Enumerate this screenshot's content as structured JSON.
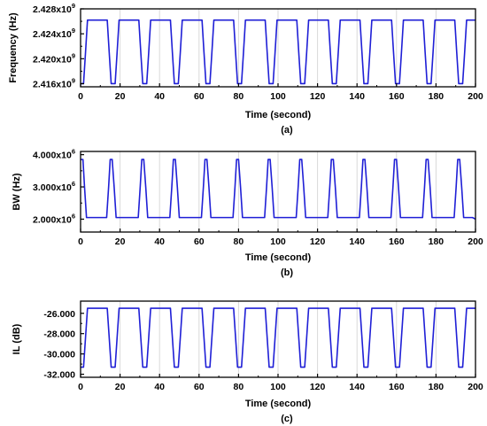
{
  "chart_data": [
    {
      "type": "line",
      "caption": "(a)",
      "xlabel": "Time (second)",
      "ylabel": "Frequency (Hz)",
      "xlim": [
        0,
        200
      ],
      "ylim": [
        2.4155,
        2.428
      ],
      "xticks": [
        0,
        20,
        40,
        60,
        80,
        100,
        120,
        140,
        160,
        180,
        200
      ],
      "xtick_labels": [
        "0",
        "20",
        "40",
        "60",
        "80",
        "100",
        "120",
        "140",
        "160",
        "180",
        "200"
      ],
      "yticks": [
        2.416,
        2.42,
        2.424,
        2.428
      ],
      "ytick_labels": [
        "2.416x10",
        "2.420x10",
        "2.424x10",
        "2.428x10"
      ],
      "ytick_exponent": "9",
      "grid": "vertical",
      "line_color": "#1f1fd6",
      "series": [
        {
          "x": [
            0,
            1.5,
            2.5,
            3.5,
            13.5,
            14.5,
            15.5,
            17.5,
            18.5,
            19.5,
            29.5,
            30.5,
            31.5,
            33.5,
            34.5,
            35.5,
            45.5,
            46.5,
            47.5,
            49.5,
            50.5,
            51.5,
            61.5,
            62.5,
            63.5,
            65.5,
            66.5,
            67.5,
            77.5,
            78.5,
            79.5,
            81.5,
            82.5,
            83.5,
            93.5,
            94.5,
            95.5,
            97.5,
            98.5,
            99.5,
            109.5,
            110.5,
            111.5,
            113.5,
            114.5,
            115.5,
            125.5,
            126.5,
            127.5,
            129.5,
            130.5,
            131.5,
            141.5,
            142.5,
            143.5,
            145.5,
            146.5,
            147.5,
            157.5,
            158.5,
            159.5,
            161.5,
            162.5,
            163.5,
            173.5,
            174.5,
            175.5,
            177.5,
            178.5,
            179.5,
            189.5,
            190.5,
            191.5,
            193.5,
            194.5,
            195.5,
            200
          ],
          "y": [
            2.416,
            2.416,
            2.421,
            2.4262,
            2.4262,
            2.421,
            2.416,
            2.416,
            2.421,
            2.4262,
            2.4262,
            2.421,
            2.416,
            2.416,
            2.421,
            2.4262,
            2.4262,
            2.421,
            2.416,
            2.416,
            2.421,
            2.4262,
            2.4262,
            2.421,
            2.416,
            2.416,
            2.421,
            2.4262,
            2.4262,
            2.421,
            2.416,
            2.416,
            2.421,
            2.4262,
            2.4262,
            2.421,
            2.416,
            2.416,
            2.421,
            2.4262,
            2.4262,
            2.421,
            2.416,
            2.416,
            2.421,
            2.4262,
            2.4262,
            2.421,
            2.416,
            2.416,
            2.421,
            2.4262,
            2.4262,
            2.421,
            2.416,
            2.416,
            2.421,
            2.4262,
            2.4262,
            2.421,
            2.416,
            2.416,
            2.421,
            2.4262,
            2.4262,
            2.421,
            2.416,
            2.416,
            2.421,
            2.4262,
            2.4262,
            2.421,
            2.416,
            2.416,
            2.421,
            2.4262,
            2.4262
          ]
        }
      ]
    },
    {
      "type": "line",
      "caption": "(b)",
      "xlabel": "Time (second)",
      "ylabel": "BW (Hz)",
      "xlim": [
        0,
        200
      ],
      "ylim": [
        1.6,
        4.1
      ],
      "xticks": [
        0,
        20,
        40,
        60,
        80,
        100,
        120,
        140,
        160,
        180,
        200
      ],
      "xtick_labels": [
        "0",
        "20",
        "40",
        "60",
        "80",
        "100",
        "120",
        "140",
        "160",
        "180",
        "200"
      ],
      "yticks": [
        2.0,
        3.0,
        4.0
      ],
      "ytick_labels": [
        "2.000x10",
        "3.000x10",
        "4.000x10"
      ],
      "ytick_exponent": "6",
      "grid": "vertical",
      "line_color": "#1f1fd6",
      "series": [
        {
          "x": [
            0,
            1.2,
            2.0,
            3.0,
            13.2,
            14.2,
            15.0,
            16.0,
            17.0,
            18.0,
            29.2,
            30.2,
            31.0,
            32.0,
            33.0,
            34.0,
            45.2,
            46.2,
            47.0,
            48.0,
            49.0,
            50.0,
            61.2,
            62.2,
            63.0,
            64.0,
            65.0,
            66.0,
            77.2,
            78.2,
            79.0,
            80.0,
            81.0,
            82.0,
            93.2,
            94.2,
            95.0,
            96.0,
            97.0,
            98.0,
            109.2,
            110.2,
            111.0,
            112.0,
            113.0,
            114.0,
            125.2,
            126.2,
            127.0,
            128.0,
            129.0,
            130.0,
            141.2,
            142.2,
            143.0,
            144.0,
            145.0,
            146.0,
            157.2,
            158.2,
            159.0,
            160.0,
            161.0,
            162.0,
            173.2,
            174.2,
            175.0,
            176.0,
            177.0,
            178.0,
            189.2,
            190.2,
            191.0,
            192.0,
            193.0,
            194.0,
            198.5,
            200
          ],
          "y": [
            3.85,
            3.85,
            3.0,
            2.05,
            2.05,
            3.0,
            3.85,
            3.85,
            3.0,
            2.05,
            2.05,
            3.0,
            3.85,
            3.85,
            3.0,
            2.05,
            2.05,
            3.0,
            3.85,
            3.85,
            3.0,
            2.05,
            2.05,
            3.0,
            3.85,
            3.85,
            3.0,
            2.05,
            2.05,
            3.0,
            3.85,
            3.85,
            3.0,
            2.05,
            2.05,
            3.0,
            3.85,
            3.85,
            3.0,
            2.05,
            2.05,
            3.0,
            3.85,
            3.85,
            3.0,
            2.05,
            2.05,
            3.0,
            3.85,
            3.85,
            3.0,
            2.05,
            2.05,
            3.0,
            3.85,
            3.85,
            3.0,
            2.05,
            2.05,
            3.0,
            3.85,
            3.85,
            3.0,
            2.05,
            2.05,
            3.0,
            3.85,
            3.85,
            3.0,
            2.05,
            2.05,
            3.0,
            3.85,
            3.85,
            3.0,
            2.05,
            2.05,
            2.0
          ]
        }
      ]
    },
    {
      "type": "line",
      "caption": "(c)",
      "xlabel": "Time (second)",
      "ylabel": "IL (dB)",
      "xlim": [
        0,
        200
      ],
      "ylim": [
        -32.3,
        -24.8
      ],
      "xticks": [
        0,
        20,
        40,
        60,
        80,
        100,
        120,
        140,
        160,
        180,
        200
      ],
      "xtick_labels": [
        "0",
        "20",
        "40",
        "60",
        "80",
        "100",
        "120",
        "140",
        "160",
        "180",
        "200"
      ],
      "yticks": [
        -32.0,
        -30.0,
        -28.0,
        -26.0
      ],
      "ytick_labels": [
        "-32.000",
        "-30.000",
        "-28.000",
        "-26.000"
      ],
      "grid": "vertical",
      "line_color": "#1f1fd6",
      "series": [
        {
          "x": [
            0,
            1.5,
            2.5,
            3.5,
            13.5,
            14.5,
            15.5,
            17.5,
            18.5,
            19.5,
            29.5,
            30.5,
            31.5,
            33.5,
            34.5,
            35.5,
            45.5,
            46.5,
            47.5,
            49.5,
            50.5,
            51.5,
            61.5,
            62.5,
            63.5,
            65.5,
            66.5,
            67.5,
            77.5,
            78.5,
            79.5,
            81.5,
            82.5,
            83.5,
            93.5,
            94.5,
            95.5,
            97.5,
            98.5,
            99.5,
            109.5,
            110.5,
            111.5,
            113.5,
            114.5,
            115.5,
            125.5,
            126.5,
            127.5,
            129.5,
            130.5,
            131.5,
            141.5,
            142.5,
            143.5,
            145.5,
            146.5,
            147.5,
            157.5,
            158.5,
            159.5,
            161.5,
            162.5,
            163.5,
            173.5,
            174.5,
            175.5,
            177.5,
            178.5,
            179.5,
            189.5,
            190.5,
            191.5,
            193.5,
            194.5,
            195.5,
            200
          ],
          "y": [
            -31.3,
            -31.3,
            -28.4,
            -25.5,
            -25.5,
            -28.4,
            -31.3,
            -31.3,
            -28.4,
            -25.5,
            -25.5,
            -28.4,
            -31.3,
            -31.3,
            -28.4,
            -25.5,
            -25.5,
            -28.4,
            -31.3,
            -31.3,
            -28.4,
            -25.5,
            -25.5,
            -28.4,
            -31.3,
            -31.3,
            -28.4,
            -25.5,
            -25.5,
            -28.4,
            -31.3,
            -31.3,
            -28.4,
            -25.5,
            -25.5,
            -28.4,
            -31.3,
            -31.3,
            -28.4,
            -25.5,
            -25.5,
            -28.4,
            -31.3,
            -31.3,
            -28.4,
            -25.5,
            -25.5,
            -28.4,
            -31.3,
            -31.3,
            -28.4,
            -25.5,
            -25.5,
            -28.4,
            -31.3,
            -31.3,
            -28.4,
            -25.5,
            -25.5,
            -28.4,
            -31.3,
            -31.3,
            -28.4,
            -25.5,
            -25.5,
            -28.4,
            -31.3,
            -31.3,
            -28.4,
            -25.5,
            -25.5,
            -28.4,
            -31.3,
            -31.3,
            -28.4,
            -25.5,
            -25.5
          ]
        }
      ]
    }
  ]
}
